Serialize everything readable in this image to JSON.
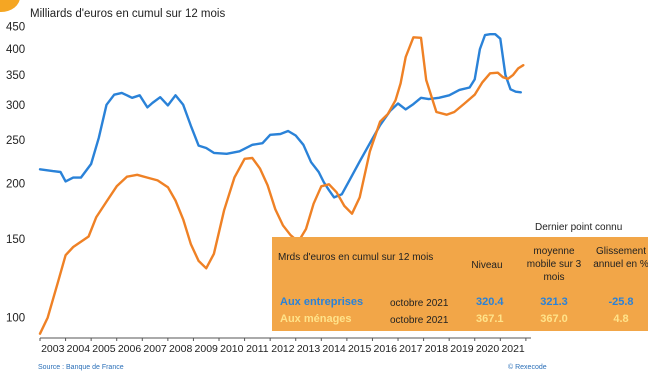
{
  "chart_data": {
    "type": "line",
    "title": "Milliards d'euros en cumul sur 12 mois",
    "y_scale": "log",
    "ylim": [
      90,
      460
    ],
    "y_ticks": [
      "450",
      "400",
      "350",
      "300",
      "250",
      "200",
      "150",
      "100"
    ],
    "x_ticks": [
      "2003",
      "2004",
      "2005",
      "2006",
      "2007",
      "2008",
      "2009",
      "2010",
      "2011",
      "2012",
      "2013",
      "2014",
      "2015",
      "2016",
      "2017",
      "2018",
      "2019",
      "2020",
      "2021"
    ],
    "xlim": [
      2003.0,
      2022.2
    ],
    "series": [
      {
        "name": "Aux entreprises",
        "color": "#2a82d8",
        "x": [
          2003.0,
          2003.5,
          2003.8,
          2004.0,
          2004.3,
          2004.6,
          2005.0,
          2005.3,
          2005.6,
          2005.9,
          2006.2,
          2006.6,
          2006.9,
          2007.2,
          2007.4,
          2007.7,
          2008.0,
          2008.3,
          2008.6,
          2008.9,
          2009.2,
          2009.5,
          2009.8,
          2010.3,
          2010.8,
          2011.3,
          2011.7,
          2012.0,
          2012.4,
          2012.7,
          2013.0,
          2013.3,
          2013.6,
          2013.9,
          2014.1,
          2014.3,
          2014.5,
          2014.8,
          2015.1,
          2015.5,
          2015.9,
          2016.3,
          2016.7,
          2017.0,
          2017.3,
          2017.6,
          2017.9,
          2018.2,
          2018.6,
          2019.0,
          2019.4,
          2019.8,
          2020.0,
          2020.2,
          2020.4,
          2020.6,
          2020.8,
          2021.0,
          2021.2,
          2021.4,
          2021.6,
          2021.8
        ],
        "values": [
          215,
          213,
          212,
          202,
          206,
          206,
          221,
          253,
          300,
          316,
          319,
          311,
          315,
          296,
          303,
          312,
          299,
          315,
          300,
          269,
          243,
          240,
          234,
          233,
          236,
          244,
          246,
          257,
          258,
          262,
          256,
          244,
          223,
          212,
          201,
          193,
          186,
          189,
          203,
          224,
          246,
          270,
          291,
          302,
          293,
          301,
          311,
          309,
          311,
          315,
          324,
          328,
          342,
          400,
          430,
          432,
          432,
          422,
          350,
          325,
          321,
          320
        ]
      },
      {
        "name": "Aux ménages",
        "color": "#ef8125",
        "x": [
          2003.0,
          2003.3,
          2003.7,
          2004.0,
          2004.3,
          2004.6,
          2004.9,
          2005.2,
          2005.6,
          2006.0,
          2006.4,
          2006.8,
          2007.2,
          2007.6,
          2008.0,
          2008.3,
          2008.6,
          2008.9,
          2009.2,
          2009.5,
          2009.8,
          2010.2,
          2010.6,
          2011.0,
          2011.3,
          2011.6,
          2011.9,
          2012.2,
          2012.5,
          2012.8,
          2013.1,
          2013.4,
          2013.7,
          2014.0,
          2014.3,
          2014.6,
          2014.9,
          2015.2,
          2015.5,
          2015.9,
          2016.3,
          2016.6,
          2016.9,
          2017.1,
          2017.3,
          2017.6,
          2017.9,
          2018.1,
          2018.5,
          2018.9,
          2019.2,
          2019.6,
          2020.0,
          2020.3,
          2020.6,
          2020.9,
          2021.1,
          2021.3,
          2021.5,
          2021.7,
          2021.9
        ],
        "values": [
          92,
          100,
          120,
          138,
          144,
          148,
          152,
          168,
          182,
          197,
          207,
          209,
          206,
          203,
          196,
          183,
          166,
          146,
          134,
          129,
          139,
          174,
          206,
          227,
          228,
          216,
          198,
          175,
          161,
          153,
          148,
          158,
          180,
          197,
          199,
          191,
          178,
          171,
          186,
          236,
          275,
          286,
          307,
          335,
          384,
          425,
          424,
          341,
          289,
          285,
          289,
          302,
          316,
          337,
          353,
          354,
          346,
          343,
          350,
          362,
          368
        ]
      }
    ]
  },
  "legend_box": {
    "header_note": "Dernier point connu",
    "col_label": "Mrds d'euros en cumul sur 12 mois",
    "col_niveau": "Niveau",
    "col_moyenne": "moyenne mobile sur 3 mois",
    "col_glissement": "Glissement annuel en %",
    "rows": [
      {
        "label": "Aux entreprises",
        "period": "octobre 2021",
        "niveau": "320.4",
        "moyenne": "321.3",
        "glissement": "-25.8",
        "color": "#2a82d8"
      },
      {
        "label": "Aux ménages",
        "period": "octobre 2021",
        "niveau": "367.1",
        "moyenne": "367.0",
        "glissement": "4.8",
        "color": "#ffe38a"
      }
    ]
  },
  "footer": {
    "source": "Source : Banque de France",
    "copyright": "© Rexecode"
  }
}
